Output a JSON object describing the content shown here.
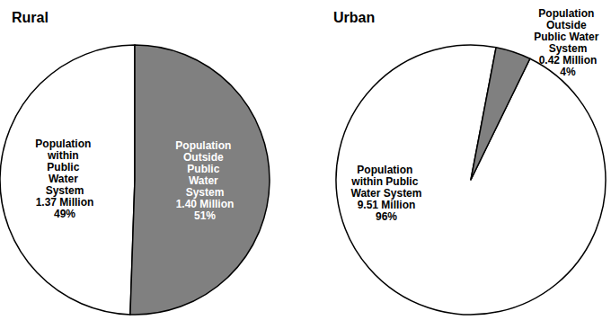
{
  "chart_data": [
    {
      "type": "pie",
      "title": "Rural",
      "categories": [
        "Population within Public Water System",
        "Population Outside Public Water System"
      ],
      "values": [
        1.37,
        1.4
      ],
      "value_labels": [
        "1.37 Million",
        "1.40 Million"
      ],
      "percentages": [
        49,
        51
      ],
      "percentage_labels": [
        "49%",
        "51%"
      ],
      "colors": [
        "#ffffff",
        "#808080"
      ],
      "data_labels": true
    },
    {
      "type": "pie",
      "title": "Urban",
      "categories": [
        "Population within Public Water System",
        "Population Outside Public Water System"
      ],
      "values": [
        9.51,
        0.42
      ],
      "value_labels": [
        "9.51 Million",
        "0.42 Million"
      ],
      "percentages": [
        96,
        4
      ],
      "percentage_labels": [
        "96%",
        "4%"
      ],
      "colors": [
        "#ffffff",
        "#808080"
      ],
      "data_labels": true
    }
  ]
}
